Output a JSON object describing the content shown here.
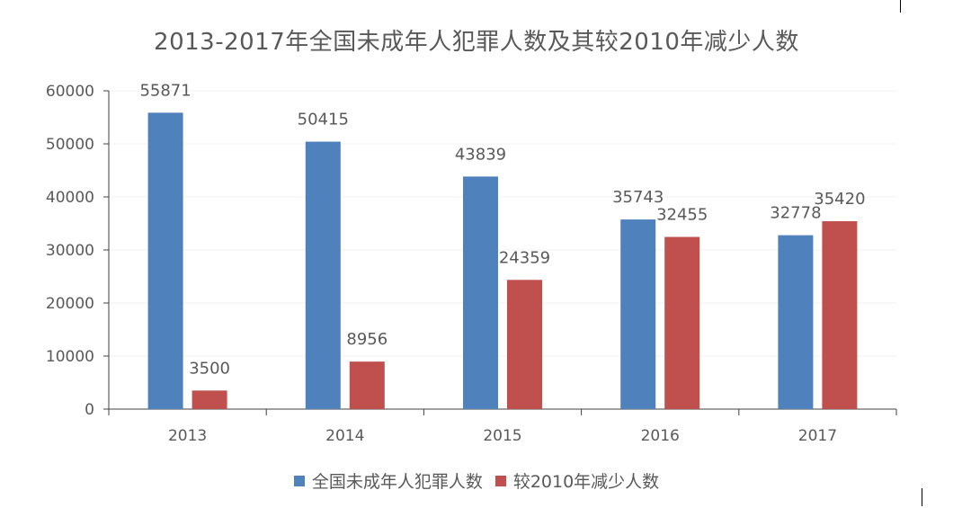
{
  "chart_data": {
    "type": "bar",
    "title": "2013-2017年全国未成年人犯罪人数及其较2010年减少人数",
    "categories": [
      "2013",
      "2014",
      "2015",
      "2016",
      "2017"
    ],
    "series": [
      {
        "name": "全国未成年人犯罪人数",
        "color": "#4f81bd",
        "values": [
          55871,
          50415,
          43839,
          35743,
          32778
        ]
      },
      {
        "name": "较2010年减少人数",
        "color": "#c0504d",
        "values": [
          3500,
          8956,
          24359,
          32455,
          35420
        ]
      }
    ],
    "yticks": [
      0,
      10000,
      20000,
      30000,
      40000,
      50000,
      60000
    ],
    "ylim": [
      0,
      60000
    ],
    "xlabel": "",
    "ylabel": "",
    "grid": true,
    "legend_position": "bottom"
  }
}
